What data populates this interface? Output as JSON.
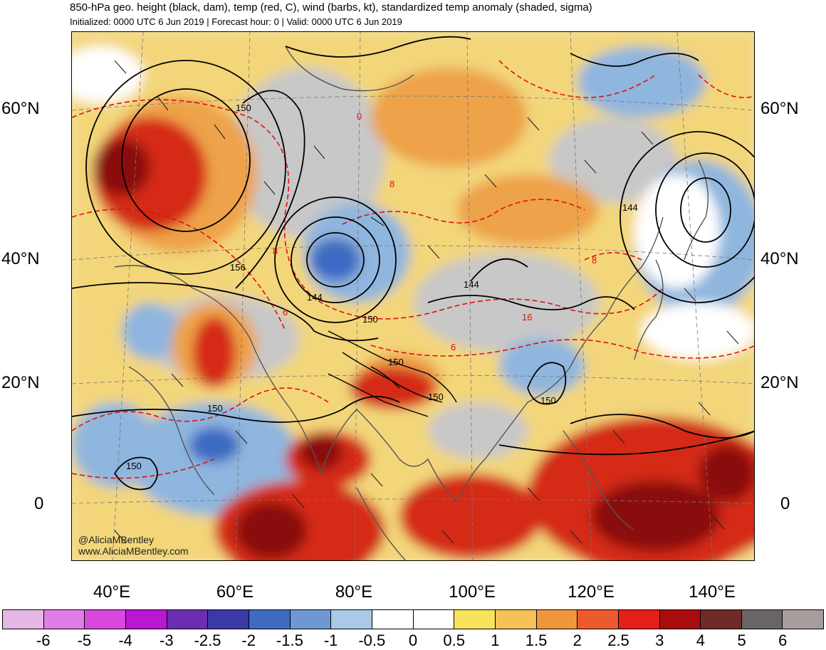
{
  "title": "850-hPa geo. height (black, dam), temp (red, C), wind (barbs, kt), standardized temp anomaly (shaded, sigma)",
  "subtitle": "Initialized: 0000 UTC 6 Jun 2019 | Forecast hour: 0 | Valid: 0000 UTC 6 Jun 2019",
  "lat_labels": [
    "60°N",
    "40°N",
    "20°N",
    "0"
  ],
  "lon_labels": [
    "40°E",
    "60°E",
    "80°E",
    "100°E",
    "120°E",
    "140°E"
  ],
  "credit": {
    "handle": "@AliciaMBentley",
    "site": "www.AliciaMBentley.com"
  },
  "height_contour_labels": [
    "150",
    "156",
    "144",
    "150",
    "144",
    "150",
    "150",
    "150",
    "150",
    "150",
    "144"
  ],
  "temp_contour_labels": [
    "0",
    "8",
    "8",
    "6",
    "6",
    "8",
    "16"
  ],
  "colorbar": {
    "colors": [
      "#e6b8e6",
      "#e17de6",
      "#d648de",
      "#b818d1",
      "#6b2eb3",
      "#3a3aa6",
      "#3d6bc2",
      "#6e98d1",
      "#a9c9e6",
      "#ffffff",
      "#ffffff",
      "#f9e35c",
      "#f4c256",
      "#f0963e",
      "#ec5a2e",
      "#e31f17",
      "#a80c0c",
      "#6f2a2a",
      "#6b6464",
      "#a89d9d"
    ],
    "ticks": [
      "-6",
      "-5",
      "-4",
      "-3",
      "-2.5",
      "-2",
      "-1.5",
      "-1",
      "-0.5",
      "0",
      "0.5",
      "1",
      "1.5",
      "2",
      "2.5",
      "3",
      "4",
      "5",
      "6"
    ]
  },
  "map_colors": {
    "warm_base": "#f3d67a",
    "warm_mid": "#eea24a",
    "hot": "#d42a14",
    "very_hot": "#8a0c0c",
    "cool": "#8fb6de",
    "cold": "#3d6bc2",
    "neutral": "#c8c8c8",
    "land_outline": "#555555"
  }
}
